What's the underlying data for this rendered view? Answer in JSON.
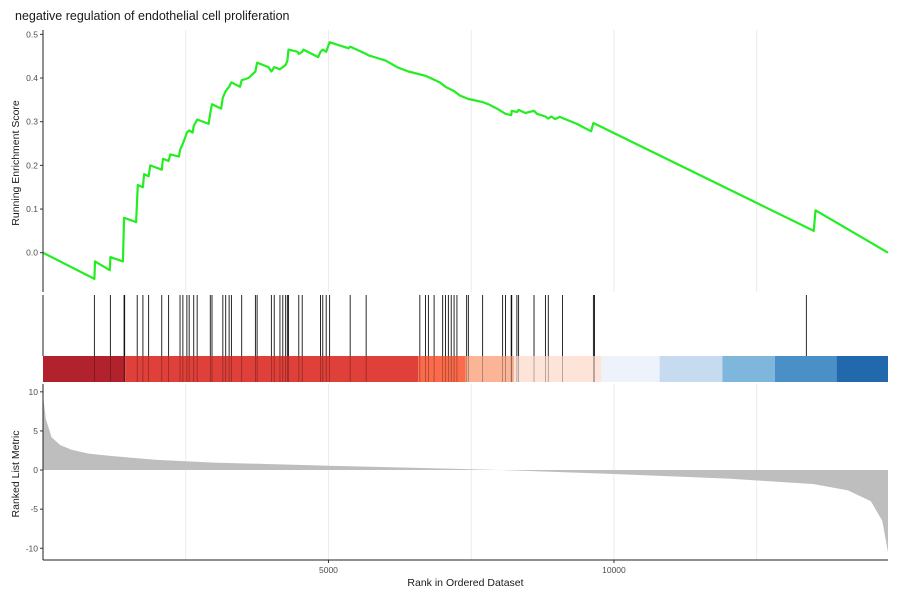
{
  "chart_data": {
    "type": "line",
    "title": "negative regulation of endothelial cell proliferation",
    "xlabel": "Rank in Ordered Dataset",
    "x_ticks": [
      5000,
      10000
    ],
    "x_tick_labels": [
      "5000",
      "10000"
    ],
    "xlim": [
      0,
      14800
    ],
    "panels": {
      "enrichment": {
        "ylabel": "Running Enrichment Score",
        "ylim": [
          -0.09,
          0.51
        ],
        "y_ticks": [
          0.0,
          0.1,
          0.2,
          0.3,
          0.4,
          0.5
        ],
        "y_tick_labels": [
          "0.0",
          "0.1",
          "0.2",
          "0.3",
          "0.4",
          "0.5"
        ],
        "line_color": "#22ee22",
        "series": [
          {
            "values": [
              [
                0,
                0.0
              ],
              [
                900,
                -0.06
              ],
              [
                910,
                -0.02
              ],
              [
                1170,
                -0.04
              ],
              [
                1180,
                -0.01
              ],
              [
                1400,
                -0.02
              ],
              [
                1420,
                0.08
              ],
              [
                1630,
                0.07
              ],
              [
                1650,
                0.125
              ],
              [
                1660,
                0.155
              ],
              [
                1750,
                0.15
              ],
              [
                1770,
                0.18
              ],
              [
                1850,
                0.175
              ],
              [
                1880,
                0.2
              ],
              [
                2080,
                0.19
              ],
              [
                2100,
                0.215
              ],
              [
                2200,
                0.21
              ],
              [
                2230,
                0.225
              ],
              [
                2380,
                0.22
              ],
              [
                2400,
                0.235
              ],
              [
                2450,
                0.25
              ],
              [
                2480,
                0.26
              ],
              [
                2520,
                0.275
              ],
              [
                2560,
                0.28
              ],
              [
                2620,
                0.275
              ],
              [
                2640,
                0.29
              ],
              [
                2700,
                0.305
              ],
              [
                2900,
                0.295
              ],
              [
                2930,
                0.32
              ],
              [
                2960,
                0.34
              ],
              [
                3120,
                0.33
              ],
              [
                3150,
                0.355
              ],
              [
                3200,
                0.37
              ],
              [
                3260,
                0.38
              ],
              [
                3300,
                0.39
              ],
              [
                3450,
                0.38
              ],
              [
                3480,
                0.395
              ],
              [
                3600,
                0.4
              ],
              [
                3720,
                0.415
              ],
              [
                3750,
                0.435
              ],
              [
                3950,
                0.425
              ],
              [
                4000,
                0.415
              ],
              [
                4050,
                0.425
              ],
              [
                4150,
                0.42
              ],
              [
                4200,
                0.425
              ],
              [
                4250,
                0.43
              ],
              [
                4280,
                0.44
              ],
              [
                4300,
                0.465
              ],
              [
                4460,
                0.46
              ],
              [
                4480,
                0.455
              ],
              [
                4540,
                0.46
              ],
              [
                4560,
                0.465
              ],
              [
                4820,
                0.448
              ],
              [
                4860,
                0.46
              ],
              [
                4900,
                0.465
              ],
              [
                4960,
                0.46
              ],
              [
                5020,
                0.482
              ],
              [
                5350,
                0.468
              ],
              [
                5380,
                0.472
              ],
              [
                5660,
                0.455
              ],
              [
                5700,
                0.452
              ],
              [
                6000,
                0.44
              ],
              [
                6200,
                0.425
              ],
              [
                6400,
                0.415
              ],
              [
                6700,
                0.405
              ],
              [
                6950,
                0.39
              ],
              [
                7050,
                0.38
              ],
              [
                7200,
                0.37
              ],
              [
                7300,
                0.36
              ],
              [
                7450,
                0.352
              ],
              [
                7700,
                0.345
              ],
              [
                7800,
                0.34
              ],
              [
                7950,
                0.33
              ],
              [
                8100,
                0.318
              ],
              [
                8200,
                0.315
              ],
              [
                8210,
                0.325
              ],
              [
                8300,
                0.322
              ],
              [
                8330,
                0.327
              ],
              [
                8450,
                0.32
              ],
              [
                8600,
                0.325
              ],
              [
                8650,
                0.318
              ],
              [
                8800,
                0.312
              ],
              [
                8850,
                0.307
              ],
              [
                8900,
                0.312
              ],
              [
                8970,
                0.306
              ],
              [
                9050,
                0.311
              ],
              [
                9350,
                0.295
              ],
              [
                9600,
                0.278
              ],
              [
                9640,
                0.297
              ],
              [
                13500,
                0.05
              ],
              [
                13530,
                0.097
              ],
              [
                14800,
                0.0
              ]
            ]
          }
        ]
      },
      "hits": {
        "ranks": [
          900,
          1180,
          1420,
          1430,
          1650,
          1750,
          1850,
          2080,
          2200,
          2400,
          2450,
          2520,
          2560,
          2640,
          2700,
          2930,
          2960,
          3150,
          3200,
          3260,
          3300,
          3480,
          3720,
          3750,
          4000,
          4050,
          4150,
          4200,
          4250,
          4280,
          4300,
          4480,
          4540,
          4860,
          4900,
          4960,
          5020,
          5380,
          5660,
          6600,
          6700,
          6750,
          6850,
          7000,
          7050,
          7100,
          7150,
          7200,
          7250,
          7420,
          7450,
          7700,
          8050,
          8100,
          8200,
          8210,
          8300,
          8330,
          8600,
          8800,
          8850,
          9100,
          9640,
          9660,
          13370
        ],
        "gradient_boundaries": [
          0,
          1440,
          6570,
          7400,
          8250,
          9780,
          10800,
          11900,
          12820,
          13900,
          14800
        ],
        "gradient_colors": [
          "#b2222c",
          "#e0403a",
          "#fb6a4a",
          "#fcb497",
          "#fee4d8",
          "#eef3fb",
          "#c6dbef",
          "#7fb6db",
          "#4a8fc6",
          "#2268ad"
        ]
      },
      "ranked_metric": {
        "ylabel": "Ranked List Metric",
        "ylim": [
          -11.5,
          11
        ],
        "y_ticks": [
          10,
          5,
          0,
          -5,
          -10
        ],
        "y_tick_labels": [
          "10",
          "5",
          "0",
          "-5",
          "-10"
        ],
        "fill_color": "#bebebe",
        "profile": [
          [
            0,
            9.5
          ],
          [
            50,
            6.5
          ],
          [
            150,
            4.2
          ],
          [
            300,
            3.2
          ],
          [
            500,
            2.6
          ],
          [
            800,
            2.1
          ],
          [
            1200,
            1.8
          ],
          [
            2000,
            1.3
          ],
          [
            3000,
            0.95
          ],
          [
            5000,
            0.55
          ],
          [
            7000,
            0.2
          ],
          [
            8000,
            0.0
          ],
          [
            10000,
            -0.5
          ],
          [
            12000,
            -1.1
          ],
          [
            13500,
            -1.8
          ],
          [
            14100,
            -2.6
          ],
          [
            14500,
            -4.0
          ],
          [
            14700,
            -6.5
          ],
          [
            14800,
            -10.5
          ]
        ]
      }
    }
  }
}
